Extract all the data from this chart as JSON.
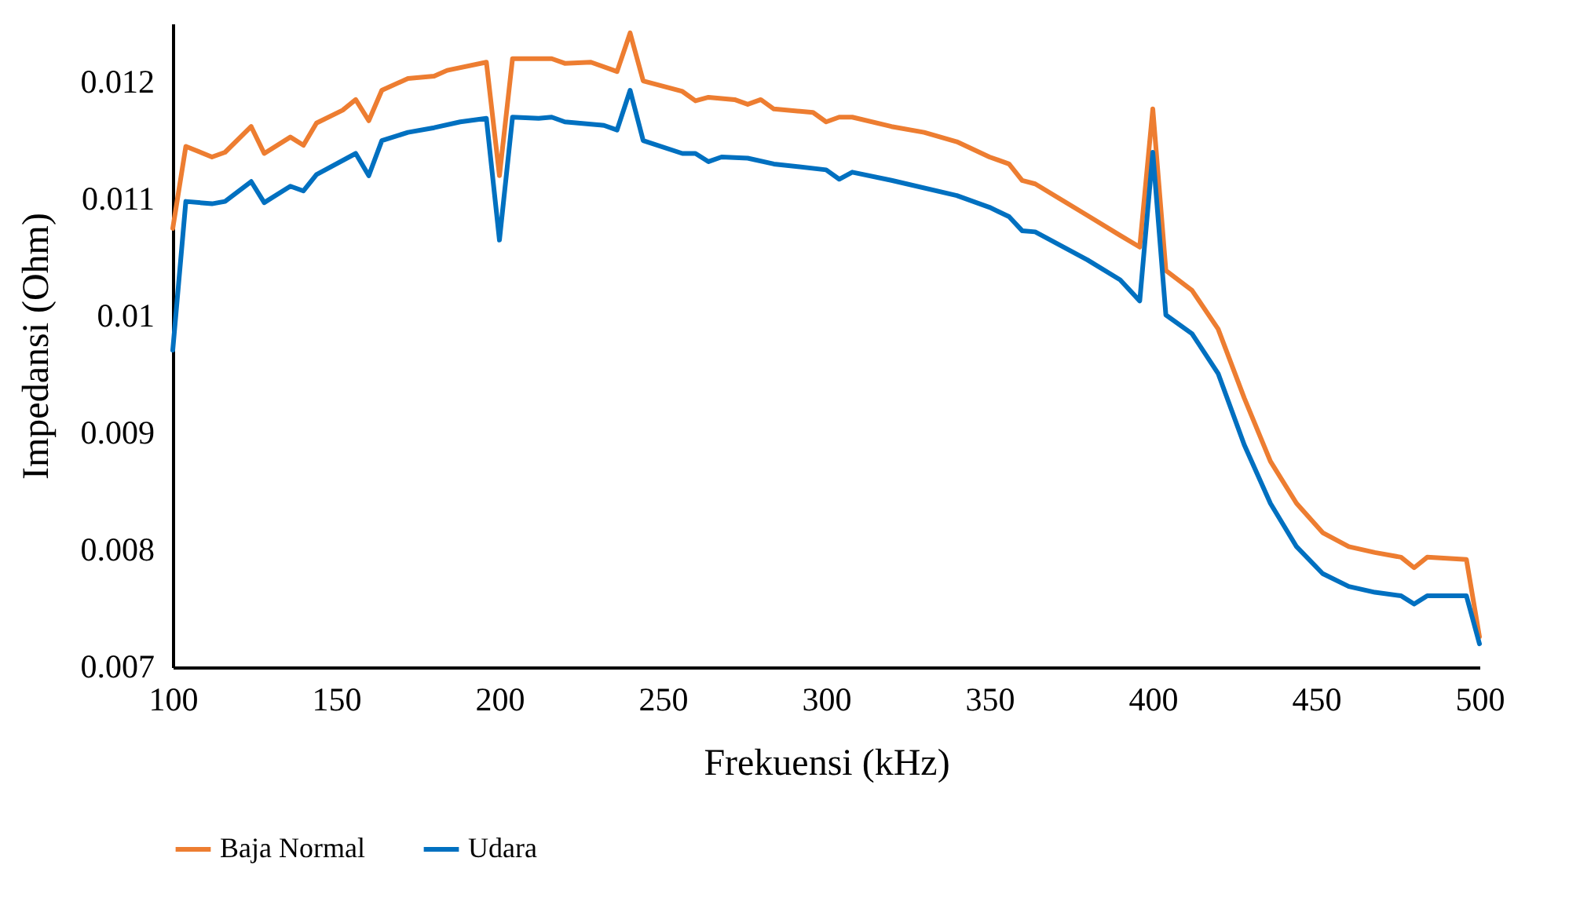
{
  "chart_data": {
    "type": "line",
    "xlabel": "Frekuensi (kHz)",
    "ylabel": "Impedansi (Ohm)",
    "xlim": [
      100,
      500
    ],
    "xticks": [
      100,
      150,
      200,
      250,
      300,
      350,
      400,
      450,
      500
    ],
    "ylim": [
      0.007,
      0.0125
    ],
    "yticks": [
      {
        "value": 0.007,
        "label": "0.007"
      },
      {
        "value": 0.008,
        "label": "0.008"
      },
      {
        "value": 0.009,
        "label": "0.009"
      },
      {
        "value": 0.01,
        "label": "0.01"
      },
      {
        "value": 0.011,
        "label": "0.011"
      },
      {
        "value": 0.012,
        "label": "0.012"
      }
    ],
    "grid": false,
    "legend": "bottom",
    "marker": "none",
    "line_style": "solid",
    "series": [
      {
        "name": "Baja Normal",
        "color": "#ed7d31",
        "x": [
          100,
          104,
          112,
          116,
          124,
          128,
          136,
          140,
          144,
          152,
          156,
          160,
          164,
          172,
          180,
          184,
          196,
          200,
          204,
          216,
          220,
          228,
          236,
          240,
          244,
          256,
          260,
          264,
          272,
          276,
          280,
          284,
          296,
          300,
          304,
          308,
          320,
          330,
          340,
          350,
          356,
          360,
          364,
          380,
          390,
          396,
          400,
          404,
          412,
          420,
          428,
          436,
          444,
          452,
          460,
          468,
          476,
          480,
          484,
          496,
          500
        ],
        "values": [
          0.01075,
          0.01145,
          0.01136,
          0.0114,
          0.01162,
          0.01139,
          0.01153,
          0.01146,
          0.01165,
          0.01176,
          0.01185,
          0.01167,
          0.01193,
          0.01203,
          0.01205,
          0.0121,
          0.01217,
          0.0112,
          0.0122,
          0.0122,
          0.01216,
          0.01217,
          0.01209,
          0.01242,
          0.01201,
          0.01192,
          0.01184,
          0.01187,
          0.01185,
          0.01181,
          0.01185,
          0.01177,
          0.01174,
          0.01166,
          0.0117,
          0.0117,
          0.01162,
          0.01157,
          0.01149,
          0.01136,
          0.0113,
          0.01116,
          0.01113,
          0.01086,
          0.01069,
          0.01059,
          0.01177,
          0.01039,
          0.01022,
          0.00989,
          0.0093,
          0.00876,
          0.0084,
          0.00815,
          0.00803,
          0.00798,
          0.00794,
          0.00785,
          0.00794,
          0.00792,
          0.00726
        ]
      },
      {
        "name": "Udara",
        "color": "#0070c0",
        "x": [
          100,
          104,
          112,
          116,
          124,
          128,
          136,
          140,
          144,
          156,
          160,
          164,
          172,
          180,
          188,
          196,
          200,
          204,
          212,
          216,
          220,
          232,
          236,
          240,
          244,
          256,
          260,
          264,
          268,
          276,
          284,
          300,
          304,
          308,
          320,
          340,
          350,
          356,
          360,
          364,
          380,
          390,
          396,
          400,
          404,
          412,
          420,
          428,
          436,
          444,
          452,
          460,
          468,
          476,
          480,
          484,
          496,
          500
        ],
        "values": [
          0.00971,
          0.01098,
          0.01096,
          0.01098,
          0.01115,
          0.01097,
          0.01111,
          0.01107,
          0.01121,
          0.01139,
          0.0112,
          0.0115,
          0.01157,
          0.01161,
          0.01166,
          0.01169,
          0.01065,
          0.0117,
          0.01169,
          0.0117,
          0.01166,
          0.01163,
          0.01159,
          0.01193,
          0.0115,
          0.01139,
          0.01139,
          0.01132,
          0.01136,
          0.01135,
          0.0113,
          0.01125,
          0.01117,
          0.01123,
          0.01116,
          0.01103,
          0.01093,
          0.01085,
          0.01073,
          0.01072,
          0.01048,
          0.01031,
          0.01013,
          0.0114,
          0.01001,
          0.00985,
          0.00951,
          0.0089,
          0.0084,
          0.00803,
          0.0078,
          0.00769,
          0.00764,
          0.00761,
          0.00754,
          0.00761,
          0.00761,
          0.0072
        ]
      }
    ]
  }
}
